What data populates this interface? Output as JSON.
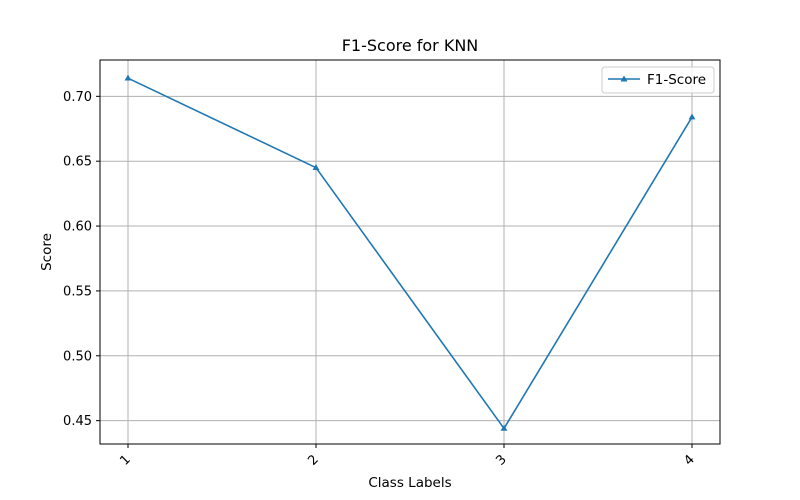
{
  "chart_data": {
    "type": "line",
    "title": "F1-Score for KNN",
    "xlabel": "Class Labels",
    "ylabel": "Score",
    "categories": [
      "1",
      "2",
      "3",
      "4"
    ],
    "yticks": [
      "0.45",
      "0.50",
      "0.55",
      "0.60",
      "0.65",
      "0.70"
    ],
    "ylim": [
      0.432,
      0.728
    ],
    "grid": true,
    "legend_position": "top-right",
    "marker": "triangle",
    "series": [
      {
        "name": "F1-Score",
        "values": [
          0.714,
          0.645,
          0.444,
          0.684
        ],
        "color": "#1f77b4"
      }
    ]
  }
}
